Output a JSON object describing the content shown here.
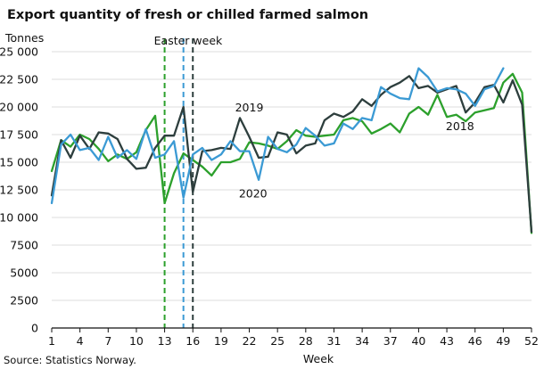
{
  "title": "Export quantity of fresh or chilled farmed salmon",
  "unit_label": "Tonnes",
  "source": "Source: Statistics Norway.",
  "colors": {
    "2018": "#2ca02c",
    "2019": "#2d3e3d",
    "2020": "#3b9ad4",
    "grid": "#dcdcdc"
  },
  "chart_data": {
    "type": "line",
    "title": "Export quantity of fresh or chilled farmed salmon",
    "xlabel": "Week",
    "ylabel": "Tonnes",
    "xlim": [
      1,
      52
    ],
    "ylim": [
      0,
      25000
    ],
    "x_ticks": [
      1,
      4,
      7,
      10,
      13,
      16,
      19,
      22,
      25,
      28,
      31,
      34,
      37,
      40,
      43,
      46,
      49,
      52
    ],
    "y_ticks": [
      0,
      2500,
      5000,
      7500,
      10000,
      12500,
      15000,
      17500,
      20000,
      22500,
      25000
    ],
    "y_tick_labels": [
      "0",
      "2500",
      "5000",
      "7500",
      "10 000",
      "12 500",
      "15 000",
      "17 500",
      "20 000",
      "22 500",
      "25 000"
    ],
    "grid": "horizontal",
    "series": [
      {
        "name": "2018",
        "color_key": "2018",
        "x": [
          1,
          2,
          3,
          4,
          5,
          6,
          7,
          8,
          9,
          10,
          11,
          12,
          13,
          14,
          15,
          16,
          17,
          18,
          19,
          20,
          21,
          22,
          23,
          24,
          25,
          26,
          27,
          28,
          29,
          30,
          31,
          32,
          33,
          34,
          35,
          36,
          37,
          38,
          39,
          40,
          41,
          42,
          43,
          44,
          45,
          46,
          47,
          48,
          49,
          50,
          51,
          52
        ],
        "values": [
          14200,
          17000,
          16400,
          17500,
          17100,
          16200,
          15100,
          15700,
          15300,
          15900,
          17900,
          19200,
          11300,
          14000,
          15800,
          15200,
          14600,
          13800,
          15000,
          15000,
          15300,
          16800,
          16700,
          16500,
          16200,
          16900,
          17900,
          17400,
          17300,
          17400,
          17500,
          18800,
          19000,
          18700,
          17600,
          18000,
          18500,
          17700,
          19400,
          20000,
          19300,
          21100,
          19100,
          19300,
          18700,
          19500,
          19700,
          19900,
          22200,
          23000,
          21300,
          8600
        ]
      },
      {
        "name": "2019",
        "color_key": "2019",
        "x": [
          1,
          2,
          3,
          4,
          5,
          6,
          7,
          8,
          9,
          10,
          11,
          12,
          13,
          14,
          15,
          16,
          17,
          18,
          19,
          20,
          21,
          22,
          23,
          24,
          25,
          26,
          27,
          28,
          29,
          30,
          31,
          32,
          33,
          34,
          35,
          36,
          37,
          38,
          39,
          40,
          41,
          42,
          43,
          44,
          45,
          46,
          47,
          48,
          49,
          50,
          51,
          52
        ],
        "values": [
          12000,
          17000,
          15400,
          17400,
          16200,
          17700,
          17600,
          17100,
          15300,
          14400,
          14500,
          16300,
          17400,
          17400,
          20000,
          12300,
          16000,
          16100,
          16300,
          16200,
          19000,
          17300,
          15400,
          15500,
          17700,
          17500,
          15800,
          16500,
          16700,
          18800,
          19400,
          19100,
          19600,
          20700,
          20100,
          21100,
          21800,
          22200,
          22800,
          21700,
          21900,
          21300,
          21600,
          21900,
          19500,
          20400,
          21800,
          22000,
          20400,
          22400,
          20200,
          8700
        ]
      },
      {
        "name": "2020",
        "color_key": "2020",
        "x": [
          1,
          2,
          3,
          4,
          5,
          6,
          7,
          8,
          9,
          10,
          11,
          12,
          13,
          14,
          15,
          16,
          17,
          18,
          19,
          20,
          21,
          22,
          23,
          24,
          25,
          26,
          27,
          28,
          29,
          30,
          31,
          32,
          33,
          34,
          35,
          36,
          37,
          38,
          39,
          40,
          41,
          42,
          43,
          44,
          45,
          46,
          47,
          48,
          49
        ],
        "values": [
          11300,
          16600,
          17500,
          16100,
          16300,
          15200,
          17300,
          15400,
          16100,
          15300,
          18000,
          15400,
          15700,
          16900,
          11800,
          15700,
          16300,
          15200,
          15700,
          16900,
          16000,
          16000,
          13400,
          17300,
          16200,
          15900,
          16600,
          18100,
          17400,
          16500,
          16700,
          18500,
          18000,
          19000,
          18800,
          21800,
          21200,
          20800,
          20700,
          23500,
          22700,
          21400,
          21700,
          21600,
          21200,
          20100,
          21600,
          21900,
          23500
        ]
      }
    ],
    "annotations": [
      {
        "text": "Easter week",
        "x": 15.5
      },
      {
        "text": "2019",
        "x": 22,
        "y": 19600
      },
      {
        "text": "2020",
        "x": 22.4,
        "y": 11800
      },
      {
        "text": "2018",
        "x": 44.4,
        "y": 17900
      }
    ],
    "vlines": [
      {
        "x": 13,
        "color_key": "2018",
        "style": "dashed"
      },
      {
        "x": 15,
        "color_key": "2020",
        "style": "dashed"
      },
      {
        "x": 16,
        "color_key": "2019",
        "style": "dashed"
      }
    ]
  }
}
